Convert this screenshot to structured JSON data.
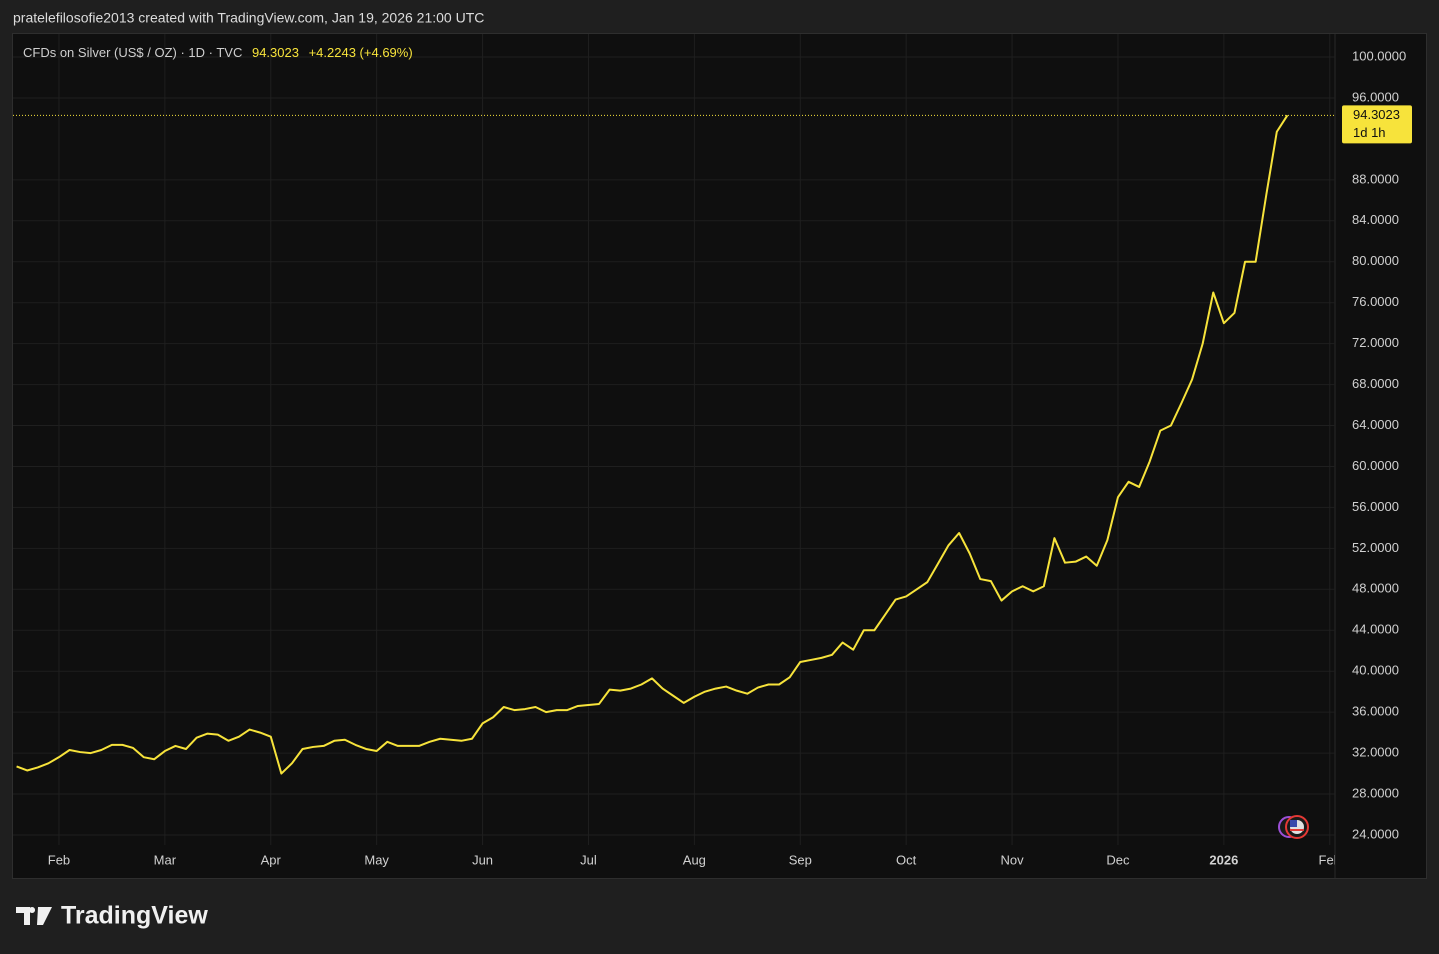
{
  "chart_data": {
    "type": "line",
    "attribution": "pratelefilosofie2013 created with TradingView.com, Jan 19, 2026 21:00 UTC",
    "title": "CFDs on Silver (US$ / OZ) · 1D · TVC",
    "change": "+4.2243 (+4.69%)",
    "countdown": "1d 1h",
    "logo": "TradingView",
    "categories": [
      null,
      null,
      null,
      null,
      "Feb",
      null,
      null,
      null,
      null,
      null,
      null,
      null,
      null,
      null,
      "Mar",
      null,
      null,
      null,
      null,
      null,
      null,
      null,
      null,
      null,
      "Apr",
      null,
      null,
      null,
      null,
      null,
      null,
      null,
      null,
      null,
      "May",
      null,
      null,
      null,
      null,
      null,
      null,
      null,
      null,
      null,
      "Jun",
      null,
      null,
      null,
      null,
      null,
      null,
      null,
      null,
      null,
      "Jul",
      null,
      null,
      null,
      null,
      null,
      null,
      null,
      null,
      null,
      "Aug",
      null,
      null,
      null,
      null,
      null,
      null,
      null,
      null,
      null,
      "Sep",
      null,
      null,
      null,
      null,
      null,
      null,
      null,
      null,
      null,
      "Oct",
      null,
      null,
      null,
      null,
      null,
      null,
      null,
      null,
      null,
      "Nov",
      null,
      null,
      null,
      null,
      null,
      null,
      null,
      null,
      null,
      "Dec",
      null,
      null,
      null,
      null,
      null,
      null,
      null,
      null,
      null,
      "2026",
      null,
      null,
      null,
      null,
      null,
      null,
      null,
      null,
      null,
      "Feb"
    ],
    "series": [
      {
        "name": "CFDs on Silver",
        "color": "#f7e33b",
        "values": [
          30.7,
          30.3,
          30.6,
          31.0,
          31.6,
          32.3,
          32.1,
          32.0,
          32.3,
          32.8,
          32.8,
          32.5,
          31.6,
          31.4,
          32.2,
          32.7,
          32.4,
          33.5,
          33.9,
          33.8,
          33.2,
          33.6,
          34.3,
          34.0,
          33.6,
          30.0,
          31.0,
          32.4,
          32.6,
          32.7,
          33.2,
          33.3,
          32.8,
          32.4,
          32.2,
          33.1,
          32.7,
          32.7,
          32.7,
          33.1,
          33.4,
          33.3,
          33.2,
          33.4,
          34.9,
          35.5,
          36.5,
          36.2,
          36.3,
          36.5,
          36.0,
          36.2,
          36.2,
          36.6,
          36.7,
          36.8,
          38.2,
          38.1,
          38.3,
          38.7,
          39.3,
          38.3,
          37.6,
          36.9,
          37.5,
          38.0,
          38.3,
          38.5,
          38.1,
          37.8,
          38.4,
          38.7,
          38.7,
          39.4,
          40.9,
          41.1,
          41.3,
          41.6,
          42.8,
          42.1,
          44.0,
          44.0,
          45.5,
          47.0,
          47.3,
          48.0,
          48.7,
          50.5,
          52.3,
          53.5,
          51.5,
          49.0,
          48.8,
          46.9,
          47.8,
          48.3,
          47.8,
          48.3,
          53.0,
          50.6,
          50.7,
          51.2,
          50.3,
          52.8,
          57.0,
          58.5,
          58.0,
          60.5,
          63.5,
          64.0,
          66.2,
          68.5,
          72.0,
          77.0,
          74.0,
          75.0,
          80.0,
          80.0,
          86.5,
          92.7,
          94.3023,
          null,
          null,
          null,
          null
        ]
      }
    ],
    "ylim": [
      23.02,
      102.25
    ],
    "yticks": [
      {
        "value": 24,
        "label": "24.0000"
      },
      {
        "value": 28,
        "label": "28.0000"
      },
      {
        "value": 32,
        "label": "32.0000"
      },
      {
        "value": 36,
        "label": "36.0000"
      },
      {
        "value": 40,
        "label": "40.0000"
      },
      {
        "value": 44,
        "label": "44.0000"
      },
      {
        "value": 48,
        "label": "48.0000"
      },
      {
        "value": 52,
        "label": "52.0000"
      },
      {
        "value": 56,
        "label": "56.0000"
      },
      {
        "value": 60,
        "label": "60.0000"
      },
      {
        "value": 64,
        "label": "64.0000"
      },
      {
        "value": 68,
        "label": "68.0000"
      },
      {
        "value": 72,
        "label": "72.0000"
      },
      {
        "value": 76,
        "label": "76.0000"
      },
      {
        "value": 80,
        "label": "80.0000"
      },
      {
        "value": 84,
        "label": "84.0000"
      },
      {
        "value": 88,
        "label": "88.0000"
      },
      {
        "value": 96,
        "label": "96.0000"
      },
      {
        "value": 100,
        "label": "100.0000"
      }
    ],
    "grid": true
  }
}
